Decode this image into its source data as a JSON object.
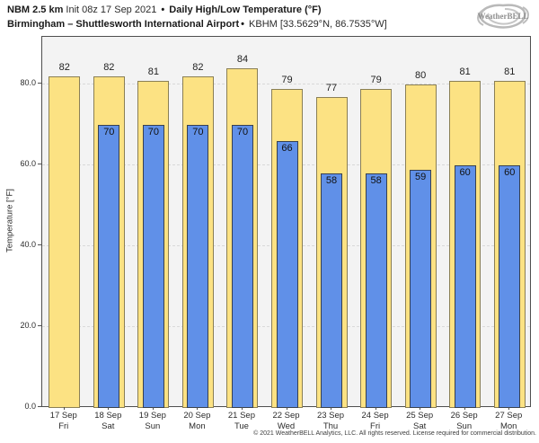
{
  "header": {
    "title_model": "NBM 2.5 km",
    "title_init": " Init 08z 17 Sep 2021 ",
    "separator": "•",
    "title_product": " Daily High/Low Temperature (°F)",
    "subtitle_station": "Birmingham – Shuttlesworth International Airport",
    "subtitle_meta": " KBHM [33.5629°N, 86.7535°W]",
    "logo_text": "WeatherBELL"
  },
  "chart_data": {
    "type": "bar",
    "title": "NBM 2.5 km Init 08z 17 Sep 2021 • Daily High/Low Temperature (°F)",
    "subtitle": "Birmingham – Shuttlesworth International Airport • KBHM [33.5629°N, 86.7535°W]",
    "categories": [
      "17 Sep",
      "18 Sep",
      "19 Sep",
      "20 Sep",
      "21 Sep",
      "22 Sep",
      "23 Sep",
      "24 Sep",
      "25 Sep",
      "26 Sep",
      "27 Sep"
    ],
    "weekdays": [
      "Fri",
      "Sat",
      "Sun",
      "Mon",
      "Tue",
      "Wed",
      "Thu",
      "Fri",
      "Sat",
      "Sun",
      "Mon"
    ],
    "series": [
      {
        "name": "Daily High",
        "color": "#fce283",
        "values": [
          82,
          82,
          81,
          82,
          84,
          79,
          77,
          79,
          80,
          81,
          81
        ]
      },
      {
        "name": "Daily Low",
        "color": "#6090e8",
        "values": [
          null,
          70,
          70,
          70,
          70,
          66,
          58,
          58,
          59,
          60,
          60
        ]
      }
    ],
    "xlabel": "",
    "ylabel": "Temperature [°F]",
    "yticks": [
      0,
      20,
      40,
      60,
      80
    ],
    "ytick_labels": [
      "0.0",
      "20.0",
      "40.0",
      "60.0",
      "80.0"
    ],
    "ylim": [
      0,
      91.8
    ],
    "grid": "horizontal-dashed",
    "legend": "none",
    "plot_bg": "#f3f3f3"
  },
  "footer": {
    "copyright": "© 2021 WeatherBELL Analytics, LLC. All rights reserved. License required for commercial distribution."
  }
}
